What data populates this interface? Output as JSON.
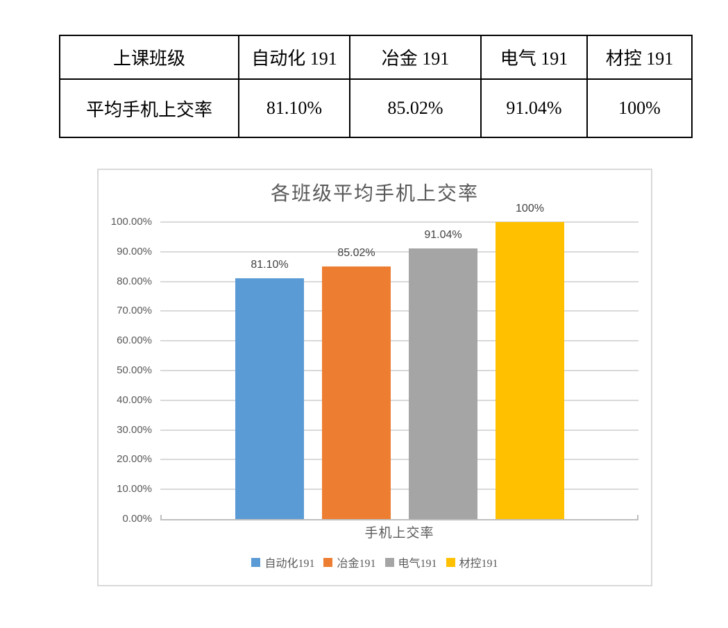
{
  "table": {
    "rows": [
      [
        "上课班级",
        "自动化 191",
        "冶金 191",
        "电气 191",
        "材控 191"
      ],
      [
        "平均手机上交率",
        "81.10%",
        "85.02%",
        "91.04%",
        "100%"
      ]
    ]
  },
  "chart_data": {
    "type": "bar",
    "title": "各班级平均手机上交率",
    "category_label": "手机上交率",
    "categories": [
      "手机上交率"
    ],
    "series": [
      {
        "name": "自动化191",
        "value": 81.1,
        "label": "81.10%",
        "color": "#5B9BD5"
      },
      {
        "name": "冶金191",
        "value": 85.02,
        "label": "85.02%",
        "color": "#ED7D31"
      },
      {
        "name": "电气191",
        "value": 91.04,
        "label": "91.04%",
        "color": "#A5A5A5"
      },
      {
        "name": "材控191",
        "value": 100,
        "label": "100%",
        "color": "#FFC000"
      }
    ],
    "y_axis": {
      "min": 0,
      "max": 100,
      "step": 10,
      "tick_labels": [
        "0.00%",
        "10.00%",
        "20.00%",
        "30.00%",
        "40.00%",
        "50.00%",
        "60.00%",
        "70.00%",
        "80.00%",
        "90.00%",
        "100.00%"
      ]
    },
    "ylim": [
      0,
      100
    ],
    "grid": true,
    "legend_position": "bottom",
    "colors": {
      "gridline": "#D9D9D9",
      "axis_line": "#BFBFBF",
      "axis_text": "#595959",
      "title_text": "#595959",
      "data_label_text": "#404040"
    }
  }
}
